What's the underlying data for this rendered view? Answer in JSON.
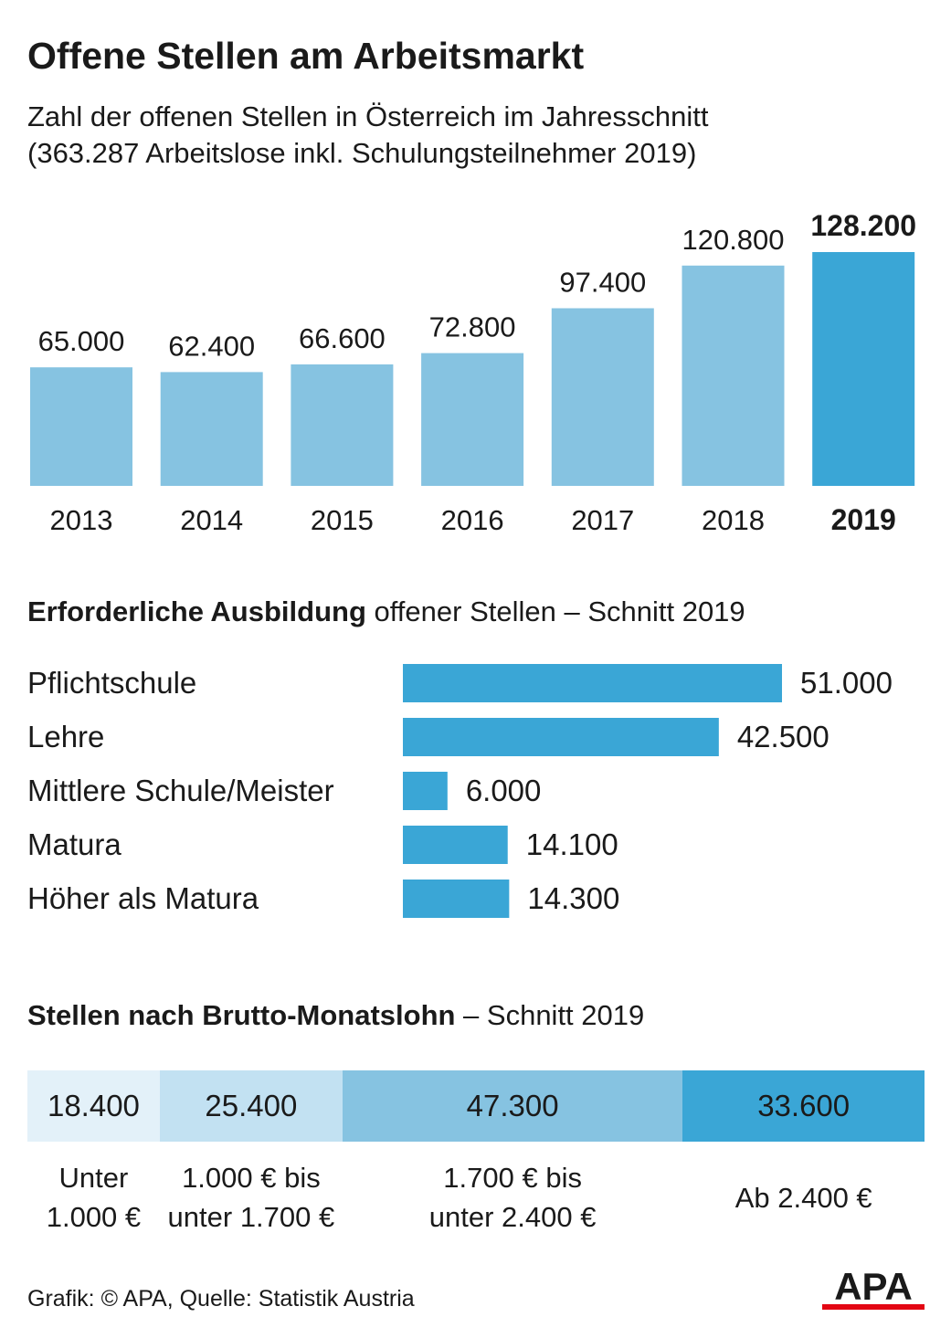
{
  "title": "Offene Stellen am Arbeitsmarkt",
  "subtitle_line1": "Zahl der offenen Stellen in Österreich im Jahresschnitt",
  "subtitle_line2": "(363.287 Arbeitslose inkl. Schulungsteilnehmer 2019)",
  "section2": {
    "bold": "Erforderliche Ausbildung",
    "rest": " offener Stellen – Schnitt 2019"
  },
  "section3": {
    "bold": "Stellen nach Brutto-Monatslohn",
    "rest": " – Schnitt 2019"
  },
  "footer": "Grafik: © APA, Quelle: Statistik Austria",
  "logo_text": "APA",
  "colors": {
    "bar": "#86c3e1",
    "bar_highlight": "#3aa6d6",
    "hbar": "#3aa6d6",
    "wage": [
      "#e3f1f9",
      "#c2e1f2",
      "#86c3e1",
      "#3aa6d6"
    ],
    "logo": "#1a1a1a",
    "logo_accent": "#e30613"
  },
  "chart_data": [
    {
      "type": "bar",
      "categories": [
        "2013",
        "2014",
        "2015",
        "2016",
        "2017",
        "2018",
        "2019"
      ],
      "values": [
        65000,
        62400,
        66600,
        72800,
        97400,
        120800,
        128200
      ],
      "value_labels": [
        "65.000",
        "62.400",
        "66.600",
        "72.800",
        "97.400",
        "120.800",
        "128.200"
      ],
      "highlight": "2019",
      "ylim": [
        0,
        128200
      ]
    },
    {
      "type": "bar",
      "orientation": "horizontal",
      "categories": [
        "Pflichtschule",
        "Lehre",
        "Mittlere Schule/Meister",
        "Matura",
        "Höher als Matura"
      ],
      "values": [
        51000,
        42500,
        6000,
        14100,
        14300
      ],
      "value_labels": [
        "51.000",
        "42.500",
        "6.000",
        "14.100",
        "14.300"
      ],
      "xlim": [
        0,
        51000
      ]
    },
    {
      "type": "bar",
      "orientation": "stacked-horizontal",
      "categories": [
        [
          "Unter",
          "1.000 €"
        ],
        [
          "1.000 € bis",
          "unter 1.700 €"
        ],
        [
          "1.700 € bis",
          "unter 2.400 €"
        ],
        [
          "Ab 2.400 €"
        ]
      ],
      "values": [
        18400,
        25400,
        47300,
        33600
      ],
      "value_labels": [
        "18.400",
        "25.400",
        "47.300",
        "33.600"
      ]
    }
  ]
}
